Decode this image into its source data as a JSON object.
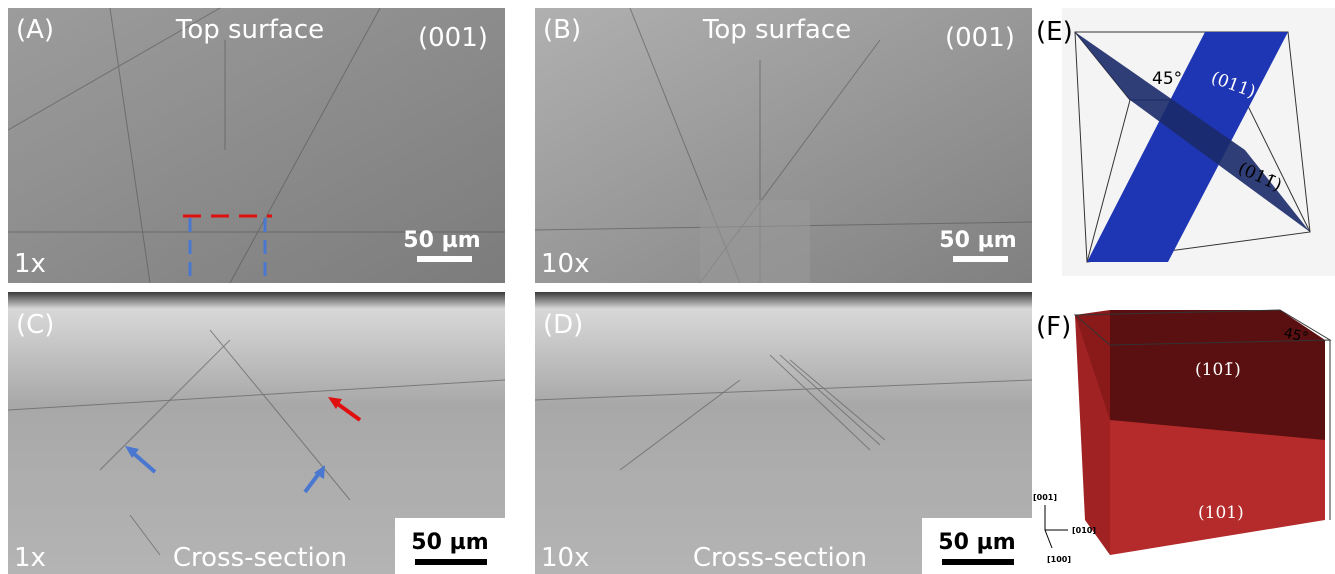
{
  "panels": [
    {
      "label": "(A)",
      "title": "Top surface",
      "orientation": "(001)",
      "magnification": "1x",
      "scale_bar": "50 µm"
    },
    {
      "label": "(B)",
      "title": "Top surface",
      "orientation": "(001)",
      "magnification": "10x",
      "scale_bar": "50 µm"
    },
    {
      "label": "(C)",
      "title": "Cross-section",
      "magnification": "1x",
      "scale_bar": "50 µm"
    },
    {
      "label": "(D)",
      "title": "Cross-section",
      "magnification": "10x",
      "scale_bar": "50 µm"
    }
  ],
  "diagrams": [
    {
      "label": "(E)",
      "angle": "45°",
      "planes": [
        "(011)",
        "(011̄)"
      ]
    },
    {
      "label": "(F)",
      "angle": "45°",
      "planes": [
        "(101̄)",
        "(101)"
      ],
      "axes": [
        "[001]",
        "[010]",
        "[100]"
      ]
    }
  ]
}
